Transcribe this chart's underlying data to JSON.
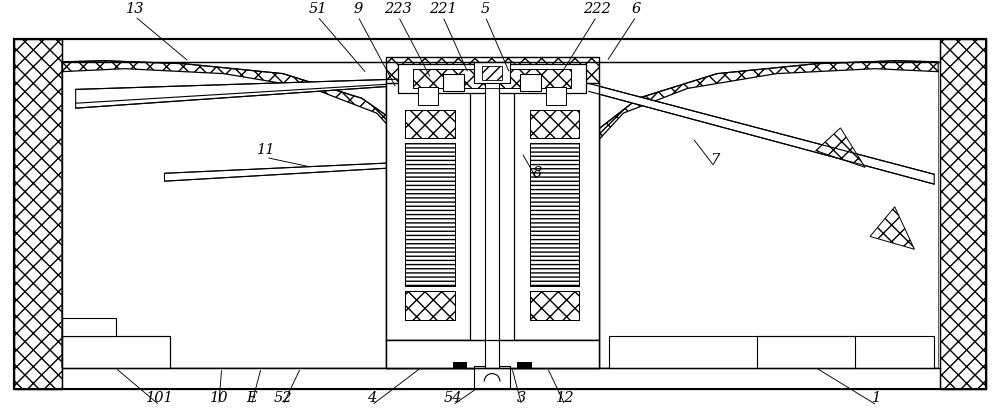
{
  "bg_color": "#ffffff",
  "lc": "#000000",
  "fig_width": 10.0,
  "fig_height": 4.19,
  "annotations_top": [
    [
      "13",
      130,
      408,
      185,
      362
    ],
    [
      "51",
      315,
      408,
      365,
      350
    ],
    [
      "9",
      356,
      408,
      395,
      335
    ],
    [
      "223",
      397,
      408,
      430,
      345
    ],
    [
      "221",
      442,
      408,
      468,
      350
    ],
    [
      "5",
      485,
      408,
      510,
      350
    ],
    [
      "222",
      598,
      408,
      562,
      350
    ],
    [
      "6",
      638,
      408,
      608,
      362
    ]
  ],
  "annotations_mid": [
    [
      "8",
      538,
      242,
      522,
      270
    ],
    [
      "11",
      263,
      265,
      310,
      255
    ],
    [
      "7",
      718,
      255,
      695,
      285
    ]
  ],
  "annotations_bot": [
    [
      "101",
      155,
      14,
      110,
      52
    ],
    [
      "10",
      215,
      14,
      218,
      52
    ],
    [
      "E",
      248,
      14,
      258,
      52
    ],
    [
      "52",
      280,
      14,
      298,
      52
    ],
    [
      "4",
      370,
      14,
      420,
      52
    ],
    [
      "54",
      452,
      14,
      478,
      32
    ],
    [
      "3",
      522,
      14,
      512,
      52
    ],
    [
      "12",
      566,
      14,
      548,
      52
    ],
    [
      "1",
      882,
      14,
      820,
      52
    ]
  ]
}
